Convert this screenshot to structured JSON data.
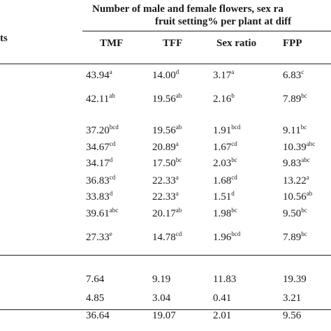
{
  "header": {
    "line1": "Number of male and female flowers, sex ra",
    "line2": "fruit setting%  per plant  at diff",
    "stub": "ts"
  },
  "table": {
    "columns": [
      "TMF",
      "TFF",
      "Sex ratio",
      "FPP"
    ],
    "rows": [
      [
        {
          "text": "43.94",
          "sup": "a"
        },
        {
          "text": "14.00",
          "sup": "d"
        },
        {
          "text": "3.17",
          "sup": "a"
        },
        {
          "text": "6.83",
          "sup": "c"
        }
      ],
      [
        {
          "text": "42.11",
          "sup": "ab"
        },
        {
          "text": "19.56",
          "sup": "ab"
        },
        {
          "text": "2.16",
          "sup": "b"
        },
        {
          "text": "7.89",
          "sup": "bc"
        }
      ],
      [
        {
          "text": "37.20",
          "sup": "bcd"
        },
        {
          "text": "19.56",
          "sup": "ab"
        },
        {
          "text": "1.91",
          "sup": "bcd"
        },
        {
          "text": "9.11",
          "sup": "bc"
        }
      ],
      [
        {
          "text": "34.67",
          "sup": "cd"
        },
        {
          "text": "20.89",
          "sup": "a"
        },
        {
          "text": "1.67",
          "sup": "cd"
        },
        {
          "text": "10.39",
          "sup": "abc"
        }
      ],
      [
        {
          "text": "34.17",
          "sup": "d"
        },
        {
          "text": "17.50",
          "sup": "bc"
        },
        {
          "text": "2.03",
          "sup": "bc"
        },
        {
          "text": "9.83",
          "sup": "abc"
        }
      ],
      [
        {
          "text": "36.83",
          "sup": "cd"
        },
        {
          "text": "22.33",
          "sup": "a"
        },
        {
          "text": "1.68",
          "sup": "cd"
        },
        {
          "text": "13.22",
          "sup": "a"
        }
      ],
      [
        {
          "text": "33.83",
          "sup": "d"
        },
        {
          "text": "22.33",
          "sup": "a"
        },
        {
          "text": "1.51",
          "sup": "d"
        },
        {
          "text": "10.56",
          "sup": "ab"
        }
      ],
      [
        {
          "text": "39.61",
          "sup": "abc"
        },
        {
          "text": "20.17",
          "sup": "ab"
        },
        {
          "text": "1.98",
          "sup": "bc"
        },
        {
          "text": "9.50",
          "sup": "bc"
        }
      ],
      [
        {
          "text": "27.33",
          "sup": "e"
        },
        {
          "text": "14.78",
          "sup": "cd"
        },
        {
          "text": "1.96",
          "sup": "bcd"
        },
        {
          "text": "7.89",
          "sup": "bc"
        }
      ],
      [
        {
          "text": "7.64"
        },
        {
          "text": "9.19"
        },
        {
          "text": "11.83"
        },
        {
          "text": "19.39"
        }
      ],
      [
        {
          "text": "4.85"
        },
        {
          "text": "3.04"
        },
        {
          "text": "0.41"
        },
        {
          "text": "3.21"
        }
      ],
      [
        {
          "text": "36.64"
        },
        {
          "text": "19.07"
        },
        {
          "text": "2.01"
        },
        {
          "text": "9.56"
        }
      ]
    ]
  }
}
